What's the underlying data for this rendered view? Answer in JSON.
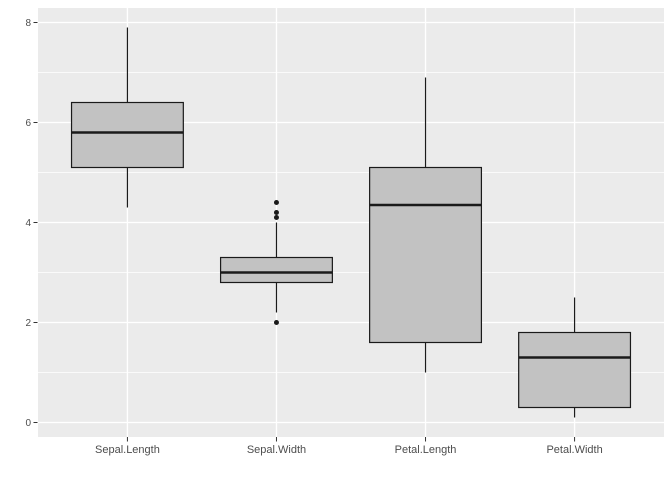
{
  "figure": {
    "background": "#FFFFFF"
  },
  "chart_data": {
    "type": "boxplot",
    "title": "",
    "xlabel": "",
    "ylabel": "",
    "categories": [
      "Sepal.Length",
      "Sepal.Width",
      "Petal.Length",
      "Petal.Width"
    ],
    "series": [
      {
        "name": "Sepal.Length",
        "whisker_low": 4.3,
        "q1": 5.1,
        "median": 5.8,
        "q3": 6.4,
        "whisker_high": 7.9,
        "outliers": []
      },
      {
        "name": "Sepal.Width",
        "whisker_low": 2.2,
        "q1": 2.8,
        "median": 3.0,
        "q3": 3.3,
        "whisker_high": 4.0,
        "outliers": [
          4.4,
          4.2,
          4.1,
          2.0
        ]
      },
      {
        "name": "Petal.Length",
        "whisker_low": 1.0,
        "q1": 1.6,
        "median": 4.35,
        "q3": 5.1,
        "whisker_high": 6.9,
        "outliers": []
      },
      {
        "name": "Petal.Width",
        "whisker_low": 0.1,
        "q1": 0.3,
        "median": 1.3,
        "q3": 1.8,
        "whisker_high": 2.5,
        "outliers": []
      }
    ],
    "y_axis": {
      "ticks": [
        "0",
        "2",
        "4",
        "6",
        "8"
      ],
      "tick_values": [
        0,
        2,
        4,
        6,
        8
      ],
      "minor_tick_values": [
        1,
        3,
        5,
        7
      ],
      "ylim": [
        -0.29,
        8.29
      ]
    },
    "x_axis": {
      "xlim": [
        0.4,
        4.6
      ],
      "positions": [
        1,
        2,
        3,
        4
      ],
      "box_width": 0.75
    },
    "grid": true,
    "legend": "none",
    "style": {
      "panel_background": "#EBEBEB",
      "grid_major_color": "#FFFFFF",
      "grid_minor_color": "#FFFFFF",
      "box_fill": "#C2C2C2",
      "box_stroke": "#1A1A1A",
      "median_stroke": "#1A1A1A",
      "whisker_stroke": "#1A1A1A",
      "outlier_color": "#1A1A1A",
      "axis_tick_color": "#333333",
      "tick_label_color": "#4D4D4D"
    }
  }
}
